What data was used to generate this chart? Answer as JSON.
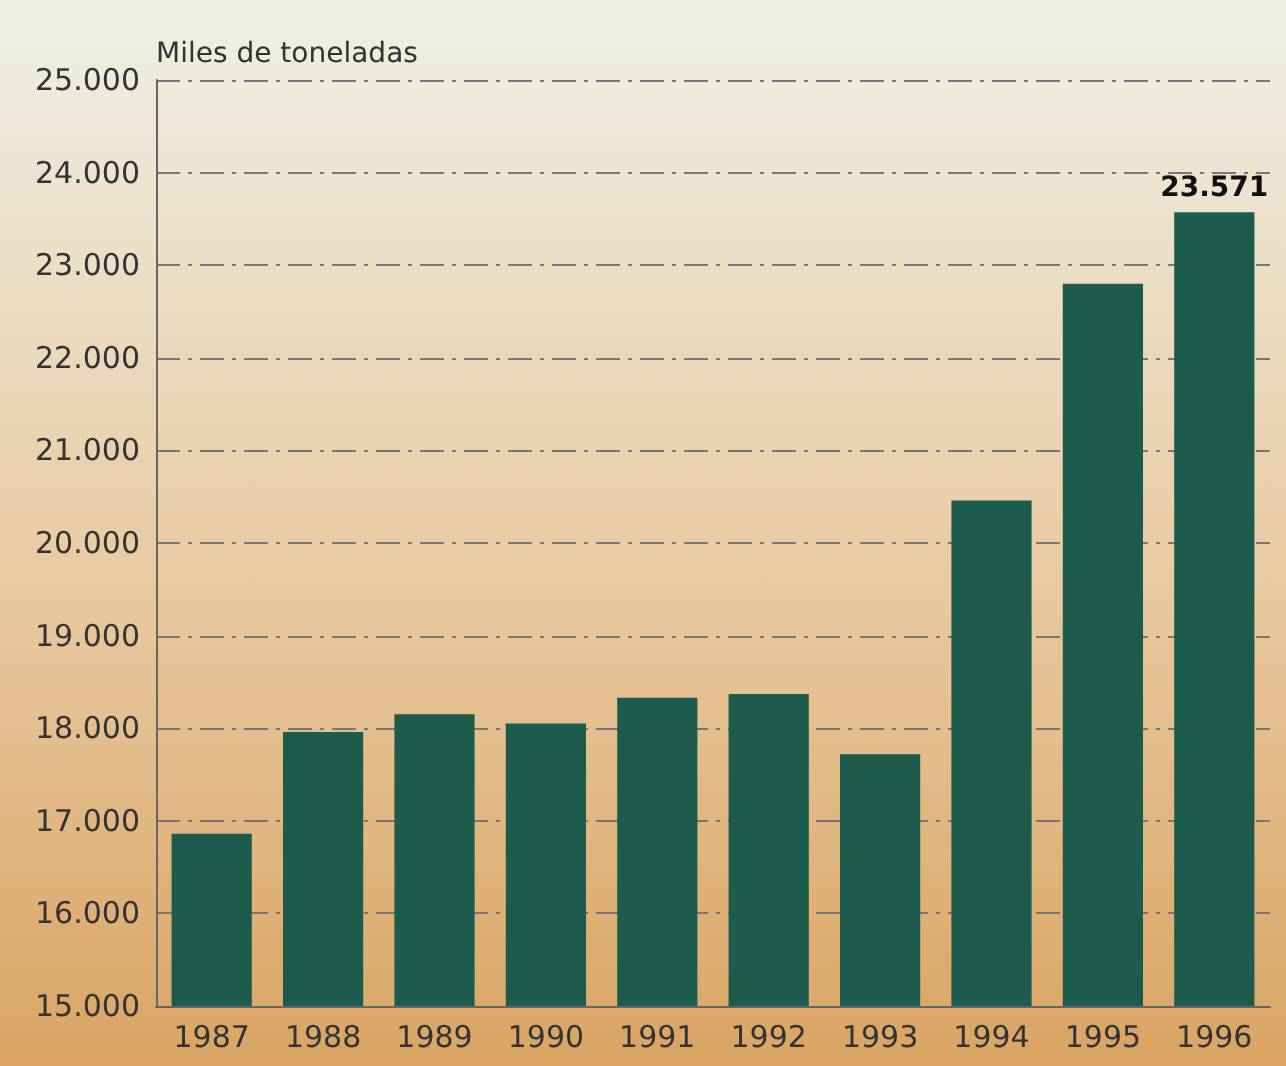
{
  "chart_data": {
    "type": "bar",
    "ylabel": "Miles de toneladas",
    "categories": [
      "1987",
      "1988",
      "1989",
      "1990",
      "1991",
      "1992",
      "1993",
      "1994",
      "1995",
      "1996"
    ],
    "values": [
      16860,
      17960,
      18150,
      18050,
      18330,
      18370,
      17720,
      20460,
      22800,
      23571
    ],
    "value_labels": [
      null,
      null,
      null,
      null,
      null,
      null,
      null,
      null,
      null,
      "23.571"
    ],
    "color": "#1d5c4c",
    "ylim": [
      15000,
      25000
    ],
    "yticks": [
      {
        "value": 15000,
        "label": "15.000"
      },
      {
        "value": 16000,
        "label": "16.000"
      },
      {
        "value": 17000,
        "label": "17.000"
      },
      {
        "value": 18000,
        "label": "18.000"
      },
      {
        "value": 19000,
        "label": "19.000"
      },
      {
        "value": 20000,
        "label": "20.000"
      },
      {
        "value": 21000,
        "label": "21.000"
      },
      {
        "value": 22000,
        "label": "22.000"
      },
      {
        "value": 23000,
        "label": "23.000"
      },
      {
        "value": 24000,
        "label": "24.000"
      },
      {
        "value": 25000,
        "label": "25.000"
      }
    ],
    "grid": "y"
  }
}
